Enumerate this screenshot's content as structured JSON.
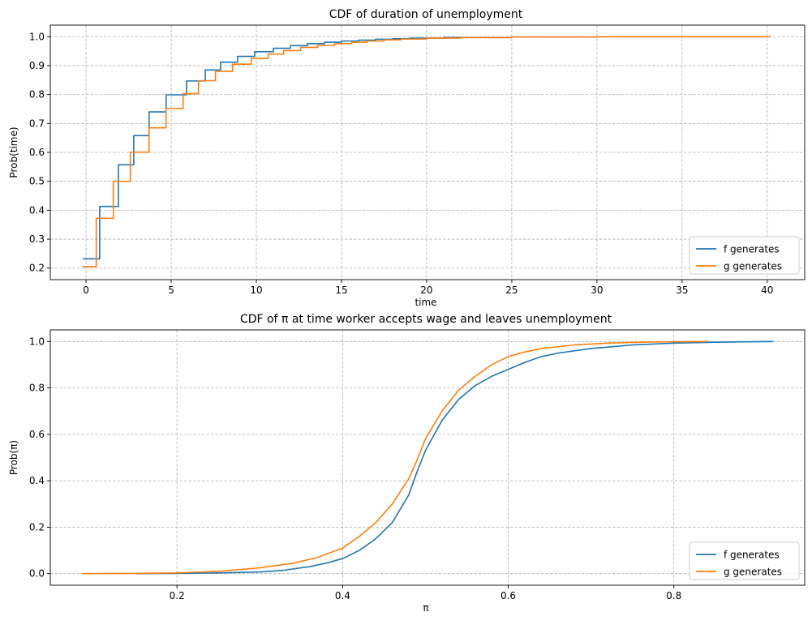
{
  "chart_data": [
    {
      "type": "line",
      "title": "CDF of duration of unemployment",
      "xlabel": "time",
      "ylabel": "Prob(time)",
      "xlim": [
        -2.1,
        42.2
      ],
      "ylim": [
        0.16,
        1.04
      ],
      "xticks": [
        0,
        5,
        10,
        15,
        20,
        25,
        30,
        35,
        40
      ],
      "xtick_labels": [
        "0",
        "5",
        "10",
        "15",
        "20",
        "25",
        "30",
        "35",
        "40"
      ],
      "yticks": [
        0.2,
        0.3,
        0.4,
        0.5,
        0.6,
        0.7,
        0.8,
        0.9,
        1.0
      ],
      "ytick_labels": [
        "0.2",
        "0.3",
        "0.4",
        "0.5",
        "0.6",
        "0.7",
        "0.8",
        "0.9",
        "1.0"
      ],
      "grid": true,
      "legend_position": "bottom-right",
      "step": true,
      "series": [
        {
          "name": "f generates",
          "color": "#1f77b4",
          "x": [
            -0.2,
            0.4,
            0.8,
            1.5,
            1.9,
            2.6,
            2.8,
            3.4,
            3.7,
            4.4,
            4.7,
            5.4,
            5.9,
            6.4,
            7.0,
            7.5,
            7.9,
            8.5,
            8.9,
            9.5,
            9.9,
            10.6,
            11.0,
            11.6,
            12.0,
            12.6,
            13.0,
            13.6,
            14.0,
            14.6,
            15.0,
            16.0,
            17.0,
            18.0,
            19.0,
            21.0,
            25.0,
            30.0,
            35.0,
            40.2
          ],
          "values": [
            0.232,
            0.232,
            0.413,
            0.413,
            0.557,
            0.557,
            0.658,
            0.658,
            0.74,
            0.74,
            0.799,
            0.799,
            0.847,
            0.847,
            0.885,
            0.885,
            0.912,
            0.912,
            0.932,
            0.932,
            0.948,
            0.948,
            0.96,
            0.96,
            0.969,
            0.969,
            0.976,
            0.976,
            0.981,
            0.981,
            0.985,
            0.988,
            0.991,
            0.993,
            0.995,
            0.997,
            0.999,
            1.0,
            1.0,
            1.0
          ]
        },
        {
          "name": "g generates",
          "color": "#ff7f0e",
          "x": [
            -0.2,
            0.2,
            0.6,
            1.2,
            1.6,
            2.2,
            2.6,
            3.2,
            3.7,
            4.2,
            4.7,
            5.2,
            5.7,
            6.2,
            6.6,
            7.2,
            7.6,
            8.2,
            8.6,
            9.2,
            9.7,
            10.2,
            10.7,
            11.2,
            11.6,
            12.2,
            12.6,
            13.2,
            13.6,
            14.2,
            14.6,
            15.2,
            15.6,
            16.5,
            17.5,
            18.5,
            20.0,
            22.0,
            25.0,
            30.0,
            35.0,
            40.2
          ],
          "values": [
            0.205,
            0.205,
            0.372,
            0.372,
            0.5,
            0.5,
            0.601,
            0.601,
            0.685,
            0.685,
            0.752,
            0.752,
            0.803,
            0.803,
            0.848,
            0.848,
            0.88,
            0.88,
            0.905,
            0.905,
            0.925,
            0.925,
            0.94,
            0.94,
            0.952,
            0.952,
            0.963,
            0.963,
            0.97,
            0.97,
            0.976,
            0.976,
            0.981,
            0.985,
            0.989,
            0.992,
            0.995,
            0.997,
            0.999,
            1.0,
            1.0,
            1.0
          ]
        }
      ]
    },
    {
      "type": "line",
      "title": "CDF of π at time worker accepts wage and leaves unemployment",
      "xlabel": "π",
      "ylabel": "Prob(π)",
      "xlim": [
        0.047,
        0.958
      ],
      "ylim": [
        -0.05,
        1.05
      ],
      "xticks": [
        0.2,
        0.4,
        0.6,
        0.8
      ],
      "xtick_labels": [
        "0.2",
        "0.4",
        "0.6",
        "0.8"
      ],
      "yticks": [
        0.0,
        0.2,
        0.4,
        0.6,
        0.8,
        1.0
      ],
      "ytick_labels": [
        "0.0",
        "0.2",
        "0.4",
        "0.6",
        "0.8",
        "1.0"
      ],
      "grid": true,
      "legend_position": "bottom-right",
      "step": false,
      "series": [
        {
          "name": "f generates",
          "color": "#1f77b4",
          "x": [
            0.15,
            0.2,
            0.25,
            0.3,
            0.33,
            0.36,
            0.38,
            0.4,
            0.42,
            0.44,
            0.46,
            0.48,
            0.49,
            0.5,
            0.52,
            0.54,
            0.56,
            0.58,
            0.6,
            0.62,
            0.64,
            0.66,
            0.7,
            0.75,
            0.8,
            0.85,
            0.92
          ],
          "values": [
            0.0,
            0.001,
            0.003,
            0.007,
            0.015,
            0.03,
            0.045,
            0.065,
            0.1,
            0.15,
            0.22,
            0.34,
            0.44,
            0.53,
            0.66,
            0.75,
            0.81,
            0.85,
            0.88,
            0.91,
            0.935,
            0.95,
            0.97,
            0.985,
            0.993,
            0.997,
            1.0
          ]
        },
        {
          "name": "g generates",
          "color": "#ff7f0e",
          "x": [
            0.085,
            0.15,
            0.2,
            0.25,
            0.3,
            0.34,
            0.37,
            0.4,
            0.42,
            0.44,
            0.46,
            0.48,
            0.49,
            0.5,
            0.52,
            0.54,
            0.56,
            0.58,
            0.6,
            0.62,
            0.64,
            0.68,
            0.72,
            0.77,
            0.84
          ],
          "values": [
            0.0,
            0.001,
            0.003,
            0.01,
            0.025,
            0.045,
            0.07,
            0.11,
            0.16,
            0.22,
            0.3,
            0.41,
            0.49,
            0.58,
            0.7,
            0.79,
            0.85,
            0.9,
            0.935,
            0.955,
            0.97,
            0.985,
            0.993,
            0.998,
            1.0
          ]
        }
      ]
    }
  ]
}
